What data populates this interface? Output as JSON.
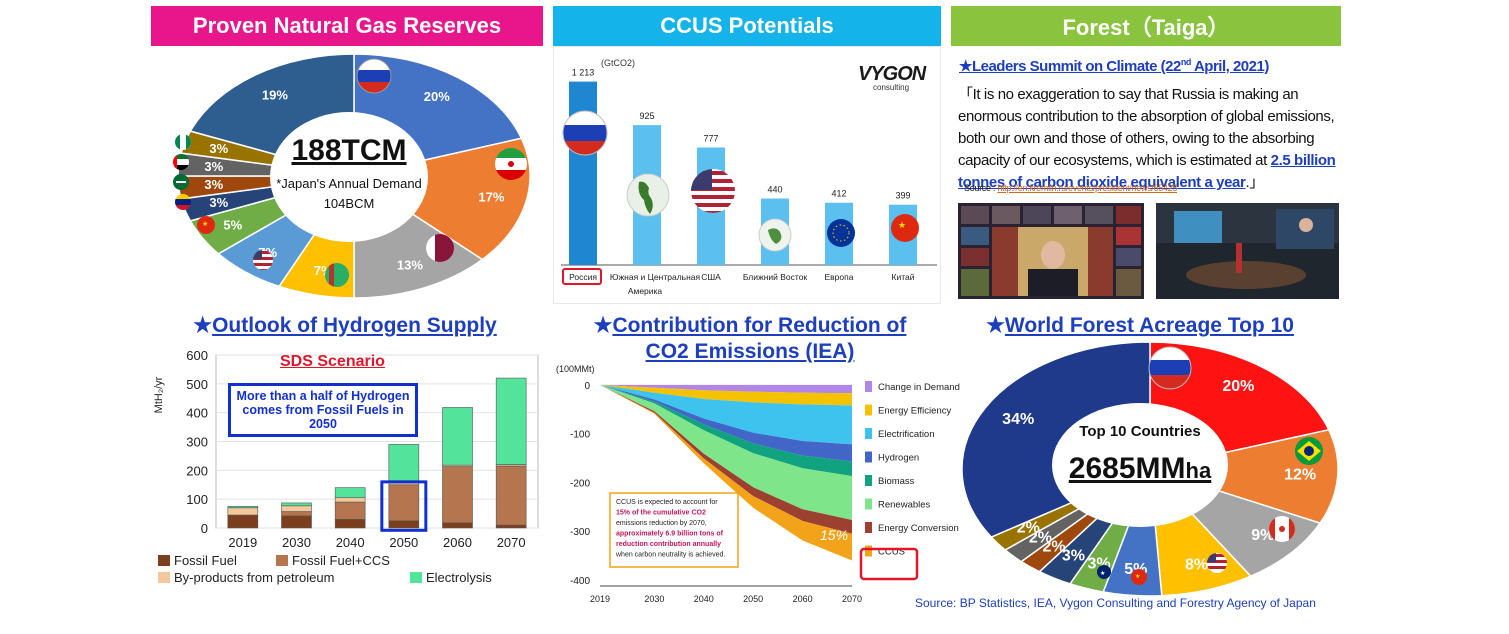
{
  "headers": {
    "gas": "Proven Natural Gas Reserves",
    "ccus": "CCUS Potentials",
    "forest": "Forest（Taiga）"
  },
  "section_titles": {
    "hydrogen": "Outlook of Hydrogen Supply",
    "contribution_line1": "Contribution for Reduction of",
    "contribution_line2": "CO2 Emissions (IEA)",
    "forest_top10": "World Forest Acreage Top 10"
  },
  "gas_center": {
    "total": "188TCM",
    "note": "*Japan's Annual Demand",
    "demand": "104BCM"
  },
  "forest_center": {
    "label": "Top 10 Countries",
    "total_num": "2685MM",
    "total_unit": "ha"
  },
  "ccus_logo": {
    "name": "VYGON",
    "sub": "consulting"
  },
  "quote": {
    "lead": "★Leaders Summit on Climate (22",
    "lead_sup": "nd",
    "lead_end": " April, 2021)",
    "text1": "「It is no exaggeration to say that Russia is making an enormous contribution to the absorption of global emissions, both our own and those of others, owing to the absorbing capacity of our ecosystems, which is estimated at ",
    "highlight": "2.5 billion tonnes of carbon dioxide equivalent a year",
    "text2": ".」",
    "source_label": "Source : ",
    "source_url": "http://en.kremlin.ru/events/president/news/65425"
  },
  "hydrogen_extra": {
    "scenario": "SDS Scenario",
    "callout": "More than a half of Hydrogen comes from Fossil Fuels in 2050"
  },
  "contribution_extra": {
    "note_lines": [
      "CCUS is expected to account for",
      "15% of the cumulative CO2",
      "emissions reduction by 2070,",
      "approximately 6.9 billion tons of",
      "reduction contribution annually",
      "when carbon neutrality is achieved."
    ],
    "share": "15%"
  },
  "source_note": "Source: BP Statistics, IEA, Vygon Consulting and Forestry Agency of Japan",
  "chart_data": [
    {
      "type": "pie",
      "title": "Proven Natural Gas Reserves",
      "values": [
        20,
        17,
        13,
        7,
        7,
        5,
        3,
        3,
        3,
        3,
        19
      ],
      "labels": [
        "20%",
        "17%",
        "13%",
        "7%",
        "7%",
        "5%",
        "3%",
        "3%",
        "3%",
        "3%",
        "19%"
      ],
      "colors": [
        "#4472c4",
        "#ed7d31",
        "#a5a5a5",
        "#ffc000",
        "#5b9bd5",
        "#70ad47",
        "#264478",
        "#9e480e",
        "#636363",
        "#997300",
        "#2e5d8f"
      ]
    },
    {
      "type": "bar",
      "title": "CCUS Potentials",
      "unit": "(GtCO2)",
      "categories": [
        "Россия",
        "Южная и Центральная Америка",
        "США",
        "Ближний Восток",
        "Европа",
        "Китай"
      ],
      "values": [
        1213,
        925,
        777,
        440,
        412,
        399
      ],
      "value_labels": [
        "1 213",
        "925",
        "777",
        "440",
        "412",
        "399"
      ],
      "colors": [
        "#1f87d1",
        "#5bc0ef",
        "#5bc0ef",
        "#5bc0ef",
        "#5bc0ef",
        "#5bc0ef"
      ],
      "ylim": [
        0,
        1250
      ]
    },
    {
      "type": "bar",
      "title": "Outlook of Hydrogen Supply",
      "ylabel": "MtH₂/yr",
      "categories": [
        "2019",
        "2030",
        "2040",
        "2050",
        "2060",
        "2070"
      ],
      "ylim": [
        0,
        600
      ],
      "yticks": [
        0,
        100,
        200,
        300,
        400,
        500,
        600
      ],
      "series": [
        {
          "name": "Fossil Fuel",
          "color": "#7b3f1d",
          "values": [
            45,
            42,
            30,
            25,
            18,
            10
          ]
        },
        {
          "name": "Fossil Fuel+CCS",
          "color": "#b5754f",
          "values": [
            0,
            15,
            60,
            125,
            195,
            205
          ]
        },
        {
          "name": "By-products from petroleum",
          "color": "#f4c89c",
          "values": [
            25,
            20,
            15,
            10,
            5,
            5
          ]
        },
        {
          "name": "Electrolysis",
          "color": "#54e39a",
          "values": [
            5,
            10,
            35,
            130,
            200,
            300
          ]
        }
      ]
    },
    {
      "type": "area",
      "title": "Contribution for Reduction of CO2 Emissions (IEA)",
      "ylabel": "(100MMt)",
      "x": [
        2019,
        2030,
        2040,
        2050,
        2060,
        2070
      ],
      "ylim": [
        -400,
        10
      ],
      "yticks": [
        0,
        -100,
        -200,
        -300,
        -400
      ],
      "series": [
        {
          "name": "Change in Demand",
          "color": "#b086e6",
          "values": [
            0,
            -6,
            -11,
            -14,
            -16,
            -17
          ]
        },
        {
          "name": "Energy Efficiency",
          "color": "#f5c200",
          "values": [
            0,
            -10,
            -18,
            -22,
            -24,
            -25
          ]
        },
        {
          "name": "Electrification",
          "color": "#3ec3ee",
          "values": [
            0,
            -14,
            -40,
            -62,
            -75,
            -80
          ]
        },
        {
          "name": "Hydrogen",
          "color": "#4166c8",
          "values": [
            0,
            -4,
            -12,
            -22,
            -30,
            -35
          ]
        },
        {
          "name": "Biomass",
          "color": "#11a37f",
          "values": [
            0,
            -4,
            -12,
            -20,
            -26,
            -30
          ]
        },
        {
          "name": "Renewables",
          "color": "#7ee58a",
          "values": [
            0,
            -16,
            -48,
            -70,
            -84,
            -90
          ]
        },
        {
          "name": "Energy Conversion",
          "color": "#9c4030",
          "values": [
            0,
            -3,
            -10,
            -18,
            -24,
            -28
          ]
        },
        {
          "name": "CCUS",
          "color": "#f3a31a",
          "values": [
            0,
            -2,
            -10,
            -24,
            -40,
            -55
          ]
        }
      ]
    },
    {
      "type": "pie",
      "title": "World Forest Acreage Top 10",
      "values": [
        20,
        12,
        9,
        8,
        5,
        3,
        3,
        2,
        2,
        2,
        34
      ],
      "labels": [
        "20%",
        "12%",
        "9%",
        "8%",
        "5%",
        "3%",
        "3%",
        "2%",
        "2%",
        "2%",
        "34%"
      ],
      "colors": [
        "#ff1212",
        "#ed7d31",
        "#a5a5a5",
        "#ffc000",
        "#4472c4",
        "#70ad47",
        "#264478",
        "#9e480e",
        "#636363",
        "#997300",
        "#1f3a8a"
      ]
    }
  ]
}
